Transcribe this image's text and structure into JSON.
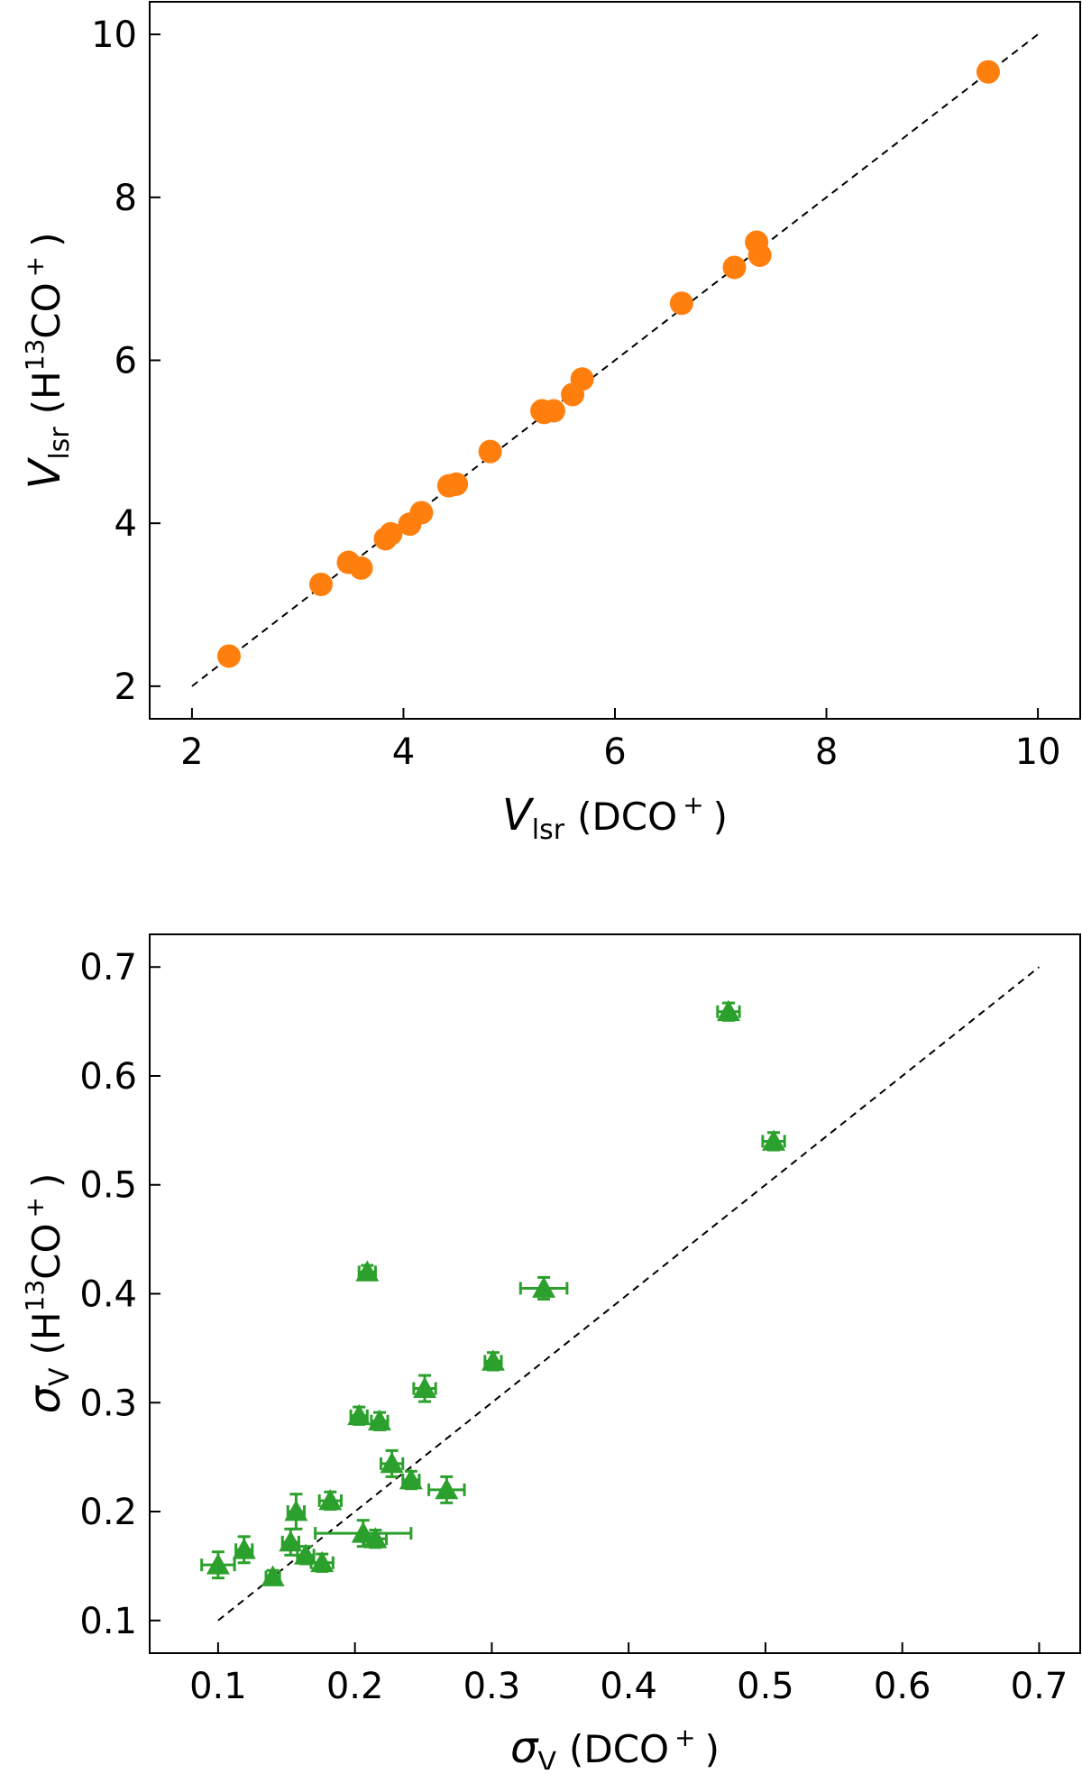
{
  "chart_data": [
    {
      "type": "scatter",
      "marker": "circle",
      "color": "#ff7f0e",
      "xlim": [
        1.6,
        10.4
      ],
      "ylim": [
        1.6,
        10.4
      ],
      "xticks": [
        "2",
        "4",
        "6",
        "8",
        "10"
      ],
      "yticks": [
        "2",
        "4",
        "6",
        "8",
        "10"
      ],
      "xlabel": {
        "symbol": "V",
        "sub": "lsr",
        "species": "(DCO",
        "charge": "+",
        "close": ")"
      },
      "ylabel": {
        "symbol": "V",
        "sub": "lsr",
        "species_pre": "(H",
        "isotope": "13",
        "species_post": "CO",
        "charge": "+",
        "close": ")"
      },
      "reference_line": {
        "style": "dashed",
        "x": [
          2,
          10
        ],
        "y": [
          2,
          10
        ]
      },
      "points": [
        {
          "x": 2.35,
          "y": 2.37
        },
        {
          "x": 3.22,
          "y": 3.25
        },
        {
          "x": 3.48,
          "y": 3.52
        },
        {
          "x": 3.6,
          "y": 3.45
        },
        {
          "x": 3.83,
          "y": 3.81
        },
        {
          "x": 3.88,
          "y": 3.87
        },
        {
          "x": 4.06,
          "y": 3.99
        },
        {
          "x": 4.17,
          "y": 4.13
        },
        {
          "x": 4.43,
          "y": 4.46
        },
        {
          "x": 4.5,
          "y": 4.48
        },
        {
          "x": 4.82,
          "y": 4.88
        },
        {
          "x": 5.31,
          "y": 5.38
        },
        {
          "x": 5.33,
          "y": 5.36
        },
        {
          "x": 5.42,
          "y": 5.38
        },
        {
          "x": 5.6,
          "y": 5.58
        },
        {
          "x": 5.69,
          "y": 5.77
        },
        {
          "x": 6.63,
          "y": 6.7
        },
        {
          "x": 7.13,
          "y": 7.14
        },
        {
          "x": 7.34,
          "y": 7.45
        },
        {
          "x": 7.37,
          "y": 7.29
        },
        {
          "x": 9.53,
          "y": 9.54
        }
      ]
    },
    {
      "type": "scatter",
      "marker": "triangle",
      "color": "#2ca02c",
      "xlim": [
        0.05,
        0.73
      ],
      "ylim": [
        0.07,
        0.73
      ],
      "xticks": [
        "0.1",
        "0.2",
        "0.3",
        "0.4",
        "0.5",
        "0.6",
        "0.7"
      ],
      "yticks": [
        "0.1",
        "0.2",
        "0.3",
        "0.4",
        "0.5",
        "0.6",
        "0.7"
      ],
      "xlabel": {
        "symbol": "σ",
        "sub": "V",
        "species": "(DCO",
        "charge": "+",
        "close": ")"
      },
      "ylabel": {
        "symbol": "σ",
        "sub": "V",
        "species_pre": "(H",
        "isotope": "13",
        "species_post": "CO",
        "charge": "+",
        "close": ")"
      },
      "reference_line": {
        "style": "dashed",
        "x": [
          0.1,
          0.7
        ],
        "y": [
          0.1,
          0.7
        ]
      },
      "points": [
        {
          "x": 0.1,
          "y": 0.151,
          "xerr": 0.012,
          "yerr": 0.012
        },
        {
          "x": 0.119,
          "y": 0.165,
          "xerr": 0.006,
          "yerr": 0.012
        },
        {
          "x": 0.14,
          "y": 0.14,
          "xerr": 0.005,
          "yerr": 0.006
        },
        {
          "x": 0.153,
          "y": 0.172,
          "xerr": 0.006,
          "yerr": 0.012
        },
        {
          "x": 0.157,
          "y": 0.2,
          "xerr": 0.006,
          "yerr": 0.016
        },
        {
          "x": 0.164,
          "y": 0.16,
          "xerr": 0.006,
          "yerr": 0.008
        },
        {
          "x": 0.176,
          "y": 0.153,
          "xerr": 0.008,
          "yerr": 0.008
        },
        {
          "x": 0.182,
          "y": 0.21,
          "xerr": 0.008,
          "yerr": 0.008
        },
        {
          "x": 0.203,
          "y": 0.288,
          "xerr": 0.006,
          "yerr": 0.008
        },
        {
          "x": 0.206,
          "y": 0.18,
          "xerr": 0.035,
          "yerr": 0.012
        },
        {
          "x": 0.209,
          "y": 0.42,
          "xerr": 0.006,
          "yerr": 0.006
        },
        {
          "x": 0.215,
          "y": 0.175,
          "xerr": 0.008,
          "yerr": 0.008
        },
        {
          "x": 0.218,
          "y": 0.283,
          "xerr": 0.006,
          "yerr": 0.008
        },
        {
          "x": 0.227,
          "y": 0.244,
          "xerr": 0.008,
          "yerr": 0.012
        },
        {
          "x": 0.241,
          "y": 0.229,
          "xerr": 0.006,
          "yerr": 0.008
        },
        {
          "x": 0.251,
          "y": 0.313,
          "xerr": 0.008,
          "yerr": 0.012
        },
        {
          "x": 0.267,
          "y": 0.22,
          "xerr": 0.013,
          "yerr": 0.012
        },
        {
          "x": 0.301,
          "y": 0.338,
          "xerr": 0.006,
          "yerr": 0.008
        },
        {
          "x": 0.338,
          "y": 0.405,
          "xerr": 0.017,
          "yerr": 0.01
        },
        {
          "x": 0.473,
          "y": 0.659,
          "xerr": 0.008,
          "yerr": 0.008
        },
        {
          "x": 0.506,
          "y": 0.54,
          "xerr": 0.008,
          "yerr": 0.008
        }
      ]
    }
  ]
}
